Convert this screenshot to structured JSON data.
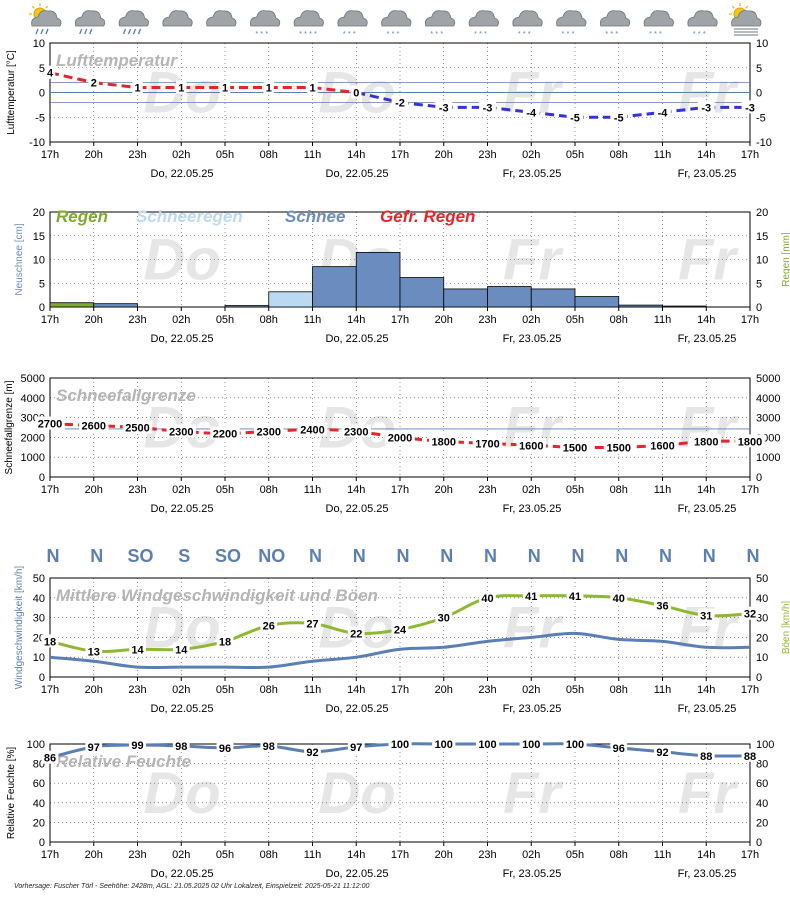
{
  "time_axis": {
    "hours": [
      "17h",
      "20h",
      "23h",
      "02h",
      "05h",
      "08h",
      "11h",
      "14h",
      "17h",
      "20h",
      "23h",
      "02h",
      "05h",
      "08h",
      "11h",
      "14h",
      "17h"
    ],
    "dates": [
      "Do, 22.05.25",
      "Do, 22.05.25",
      "Fr, 23.05.25",
      "Fr, 23.05.25"
    ],
    "day_watermarks": [
      "Do",
      "Do",
      "Fr",
      "Fr"
    ]
  },
  "weather_icons": [
    "sun-cloud-rain",
    "cloud-rain",
    "cloud-rain-heavy",
    "cloud",
    "cloud",
    "cloud-snow",
    "cloud-snow-heavy",
    "cloud-snow",
    "cloud-snow",
    "cloud-snow",
    "cloud-snow",
    "cloud-snow",
    "cloud-snow",
    "cloud-snow",
    "cloud-snow",
    "cloud-snow",
    "sun-cloud-fog"
  ],
  "colors": {
    "temp_warm": "#e8232a",
    "temp_cold": "#3333dd",
    "rain": "#7faa2d",
    "sleet": "#bcd9f2",
    "snow": "#6b8cbe",
    "freezing_rain": "#e8232a",
    "wind": "#5b7fb4",
    "gust": "#8fb832",
    "humidity": "#5b7fb4",
    "snowline": "#e8232a",
    "watermark": "#e6e6e6",
    "title_gray": "#b5b5b5"
  },
  "chart_data": [
    {
      "type": "line",
      "title": "Lufttemperatur",
      "ylabel": "Lufttemperatur [°C]",
      "ylim": [
        -10,
        10
      ],
      "yticks": [
        "10",
        "5",
        "0",
        "-5",
        "-10"
      ],
      "grid": true,
      "x": [
        "17h",
        "20h",
        "23h",
        "02h",
        "05h",
        "08h",
        "11h",
        "14h",
        "17h",
        "20h",
        "23h",
        "02h",
        "05h",
        "08h",
        "11h",
        "14h",
        "17h"
      ],
      "series": [
        {
          "values": [
            4,
            2,
            1,
            1,
            1,
            1,
            1,
            0,
            -2,
            -3,
            -3,
            -4,
            -5,
            -5,
            -4,
            -3,
            -3
          ]
        }
      ]
    },
    {
      "type": "bar",
      "legend": [
        "Regen",
        "Schneeregen",
        "Schnee",
        "Gefr. Regen"
      ],
      "ylabel": "Neuschnee [cm]",
      "y2label": "Regen [mm]",
      "ylim": [
        0,
        20
      ],
      "yticks": [
        "20",
        "15",
        "10",
        "5",
        "0"
      ],
      "grid": true,
      "x": [
        "17h",
        "20h",
        "23h",
        "02h",
        "05h",
        "08h",
        "11h",
        "14h",
        "17h",
        "20h",
        "23h",
        "02h",
        "05h",
        "08h",
        "11h",
        "14h"
      ],
      "series": [
        {
          "name": "Regen",
          "values": [
            0.9,
            0,
            0,
            0,
            0,
            0,
            0,
            0,
            0,
            0,
            0,
            0,
            0,
            0,
            0,
            0
          ]
        },
        {
          "name": "Schneeregen",
          "values": [
            0,
            0,
            0,
            0,
            0,
            3.2,
            0,
            0,
            0,
            0,
            0,
            0,
            0,
            0,
            0,
            0
          ]
        },
        {
          "name": "Schnee",
          "values": [
            0,
            0.7,
            0,
            0,
            0.3,
            0,
            8.5,
            11.5,
            6.2,
            3.8,
            4.3,
            3.8,
            2.2,
            0.4,
            0.2,
            0
          ]
        },
        {
          "name": "Gefr. Regen",
          "values": [
            0,
            0,
            0,
            0,
            0,
            0,
            0,
            0,
            0,
            0,
            0,
            0,
            0,
            0,
            0,
            0
          ]
        }
      ]
    },
    {
      "type": "line",
      "title": "Schneefallgrenze",
      "ylabel": "Schneefallgrenze [m]",
      "ylim": [
        0,
        5000
      ],
      "yticks": [
        "5000",
        "4000",
        "3000",
        "2000",
        "1000",
        "0"
      ],
      "grid": true,
      "x": [
        "17h",
        "20h",
        "23h",
        "02h",
        "05h",
        "08h",
        "11h",
        "14h",
        "17h",
        "20h",
        "23h",
        "02h",
        "05h",
        "08h",
        "11h",
        "14h",
        "17h"
      ],
      "series": [
        {
          "values": [
            2700,
            2600,
            2500,
            2300,
            2200,
            2300,
            2400,
            2300,
            2000,
            1800,
            1700,
            1600,
            1500,
            1500,
            1600,
            1800,
            1800
          ]
        }
      ]
    },
    {
      "type": "line",
      "title": "Mittlere Windgeschwindigkeit und Böen",
      "ylabel": "Windgeschwindigkeit [km/h]",
      "y2label": "Böen [km/h]",
      "ylim": [
        0,
        50
      ],
      "yticks": [
        "50",
        "40",
        "30",
        "20",
        "10",
        "0"
      ],
      "grid": true,
      "directions": [
        "N",
        "N",
        "SO",
        "S",
        "SO",
        "NO",
        "N",
        "N",
        "N",
        "N",
        "N",
        "N",
        "N",
        "N",
        "N",
        "N",
        "N"
      ],
      "x": [
        "17h",
        "20h",
        "23h",
        "02h",
        "05h",
        "08h",
        "11h",
        "14h",
        "17h",
        "20h",
        "23h",
        "02h",
        "05h",
        "08h",
        "11h",
        "14h",
        "17h"
      ],
      "series": [
        {
          "name": "Windgeschwindigkeit",
          "values": [
            10,
            8,
            5,
            5,
            5,
            5,
            8,
            10,
            14,
            15,
            18,
            20,
            22,
            19,
            18,
            15,
            15
          ]
        },
        {
          "name": "Böen",
          "values": [
            18,
            13,
            14,
            14,
            18,
            26,
            27,
            22,
            24,
            30,
            40,
            41,
            41,
            40,
            36,
            31,
            32
          ]
        }
      ]
    },
    {
      "type": "line",
      "title": "Relative Feuchte",
      "ylabel": "Relative Feuchte [%]",
      "ylim": [
        0,
        100
      ],
      "yticks": [
        "100",
        "80",
        "60",
        "40",
        "20",
        "0"
      ],
      "grid": true,
      "x": [
        "17h",
        "20h",
        "23h",
        "02h",
        "05h",
        "08h",
        "11h",
        "14h",
        "17h",
        "20h",
        "23h",
        "02h",
        "05h",
        "08h",
        "11h",
        "14h",
        "17h"
      ],
      "series": [
        {
          "values": [
            86,
            97,
            99,
            98,
            96,
            98,
            92,
            97,
            100,
            100,
            100,
            100,
            100,
            96,
            92,
            88,
            88
          ]
        }
      ]
    }
  ],
  "footer": "Vorhersage: Fuscher Törl - Seehöhe: 2428m, AGL: 21.05.2025 02 Uhr Lokalzeit, Einspielzeit: 2025-05-21  11:12:00"
}
